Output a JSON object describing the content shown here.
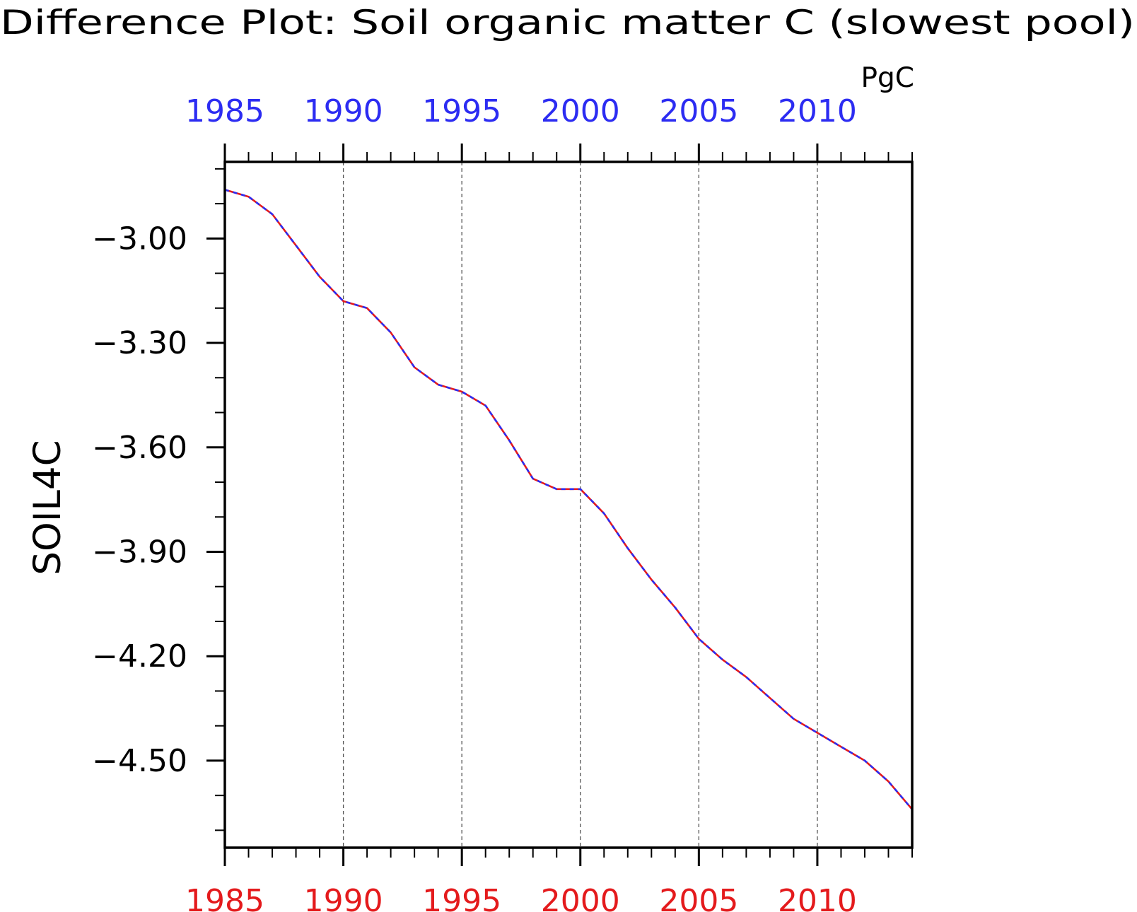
{
  "chart_data": {
    "type": "line",
    "title": "Difference Plot: Soil organic matter C (slowest pool)",
    "units": "PgC",
    "ylabel": "SOIL4C",
    "xlim": [
      1985,
      2014
    ],
    "ylim": [
      -4.75,
      -2.78
    ],
    "x_ticks": [
      "1985",
      "1990",
      "1995",
      "2000",
      "2005",
      "2010"
    ],
    "y_ticks": [
      "−3.00",
      "−3.30",
      "−3.60",
      "−3.90",
      "−4.20",
      "−4.50"
    ],
    "grid_x": true,
    "series": [
      {
        "color": "#e41a1c",
        "values_x": [
          1985,
          1986,
          1987,
          1988,
          1989,
          1990,
          1991,
          1992,
          1993,
          1994,
          1995,
          1996,
          1997,
          1998,
          1999,
          2000,
          2001,
          2002,
          2003,
          2004,
          2005,
          2006,
          2007,
          2008,
          2009,
          2010,
          2011,
          2012,
          2013,
          2014
        ],
        "values_y": [
          -2.86,
          -2.88,
          -2.93,
          -3.02,
          -3.11,
          -3.18,
          -3.2,
          -3.27,
          -3.37,
          -3.42,
          -3.44,
          -3.48,
          -3.58,
          -3.69,
          -3.72,
          -3.72,
          -3.79,
          -3.89,
          -3.98,
          -4.06,
          -4.15,
          -4.21,
          -4.26,
          -4.32,
          -4.38,
          -4.42,
          -4.46,
          -4.5,
          -4.56,
          -4.64
        ]
      },
      {
        "color": "#2c2cf2",
        "values_x": [
          1985,
          1986,
          1987,
          1988,
          1989,
          1990,
          1991,
          1992,
          1993,
          1994,
          1995,
          1996,
          1997,
          1998,
          1999,
          2000,
          2001,
          2002,
          2003,
          2004,
          2005,
          2006,
          2007,
          2008,
          2009,
          2010,
          2011,
          2012,
          2013,
          2014
        ],
        "values_y": [
          -2.86,
          -2.88,
          -2.93,
          -3.02,
          -3.11,
          -3.18,
          -3.2,
          -3.27,
          -3.37,
          -3.42,
          -3.44,
          -3.48,
          -3.58,
          -3.69,
          -3.72,
          -3.72,
          -3.79,
          -3.89,
          -3.98,
          -4.06,
          -4.15,
          -4.21,
          -4.26,
          -4.32,
          -4.38,
          -4.42,
          -4.46,
          -4.5,
          -4.56,
          -4.64
        ]
      }
    ],
    "top_axis_color": "#2c2cf2",
    "bottom_axis_color": "#e41a1c"
  }
}
